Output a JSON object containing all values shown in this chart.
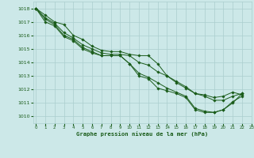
{
  "title": "Graphe pression niveau de la mer (hPa)",
  "background_color": "#cce8e8",
  "grid_color": "#aacece",
  "line_color": "#1a5c1a",
  "marker_color": "#1a5c1a",
  "xlim": [
    -0.3,
    23
  ],
  "ylim": [
    1009.5,
    1018.5
  ],
  "yticks": [
    1010,
    1011,
    1012,
    1013,
    1014,
    1015,
    1016,
    1017,
    1018
  ],
  "xticks": [
    0,
    1,
    2,
    3,
    4,
    5,
    6,
    7,
    8,
    9,
    10,
    11,
    12,
    13,
    14,
    15,
    16,
    17,
    18,
    19,
    20,
    21,
    22,
    23
  ],
  "series": [
    [
      1018.0,
      1017.5,
      1017.0,
      1016.8,
      1016.0,
      1015.7,
      1015.2,
      1014.9,
      1014.8,
      1014.8,
      1014.6,
      1014.5,
      1014.5,
      1013.9,
      1013.0,
      1012.5,
      1012.1,
      1011.7,
      1011.5,
      1011.2,
      1011.2,
      1011.5,
      1011.7
    ],
    [
      1018.0,
      1017.3,
      1016.9,
      1016.2,
      1015.8,
      1015.3,
      1015.0,
      1014.7,
      1014.6,
      1014.6,
      1014.5,
      1014.0,
      1013.8,
      1013.3,
      1013.0,
      1012.6,
      1012.2,
      1011.7,
      1011.6,
      1011.4,
      1011.5,
      1011.8,
      1011.6
    ],
    [
      1018.0,
      1017.2,
      1016.8,
      1016.0,
      1015.7,
      1015.1,
      1014.8,
      1014.5,
      1014.5,
      1014.5,
      1013.9,
      1013.2,
      1012.9,
      1012.5,
      1012.1,
      1011.8,
      1011.5,
      1010.6,
      1010.4,
      1010.3,
      1010.5,
      1011.1,
      1011.5
    ],
    [
      1018.0,
      1017.0,
      1016.7,
      1015.9,
      1015.6,
      1015.0,
      1014.7,
      1014.5,
      1014.5,
      1014.5,
      1013.9,
      1013.0,
      1012.8,
      1012.1,
      1011.9,
      1011.7,
      1011.4,
      1010.5,
      1010.3,
      1010.3,
      1010.5,
      1011.0,
      1011.7
    ]
  ]
}
